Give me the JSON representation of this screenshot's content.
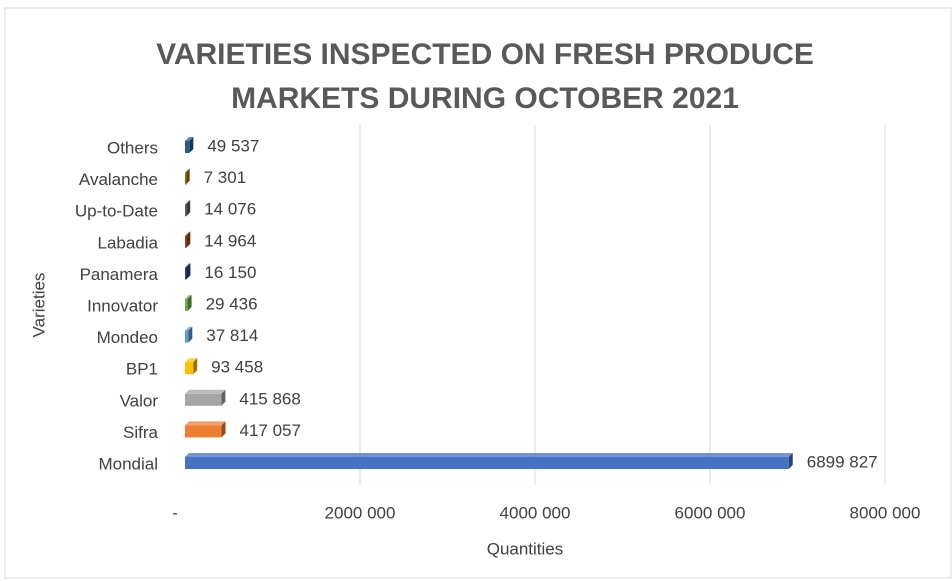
{
  "chart_data": {
    "type": "bar",
    "orientation": "horizontal",
    "title": [
      "VARIETIES INSPECTED ON FRESH PRODUCE",
      "MARKETS DURING OCTOBER 2021"
    ],
    "x_label": "Quantities",
    "y_label": "Varieties",
    "categories": [
      "Mondial",
      "Sifra",
      "Valor",
      "BP1",
      "Mondeo",
      "Innovator",
      "Panamera",
      "Labadia",
      "Up-to-Date",
      "Avalanche",
      "Others"
    ],
    "values": [
      6899827,
      417057,
      415868,
      93458,
      37814,
      29436,
      16150,
      14964,
      14076,
      7301,
      49537
    ],
    "value_labels": [
      "6899 827",
      "417 057",
      "415 868",
      "93 458",
      "37 814",
      "29 436",
      "16 150",
      "14 964",
      "14 076",
      "7 301",
      "49 537"
    ],
    "colors": [
      "#4472c4",
      "#ed7d31",
      "#a5a5a5",
      "#ffc000",
      "#5b9bd5",
      "#70ad47",
      "#264478",
      "#9e480e",
      "#636363",
      "#997300",
      "#255e91"
    ],
    "xlim": [
      0,
      8000000
    ],
    "xticks": [
      {
        "value": 0,
        "label": "-"
      },
      {
        "value": 2000000,
        "label": "2000 000"
      },
      {
        "value": 4000000,
        "label": "4000 000"
      },
      {
        "value": 6000000,
        "label": "6000 000"
      },
      {
        "value": 8000000,
        "label": "8000 000"
      }
    ],
    "grid": true
  }
}
